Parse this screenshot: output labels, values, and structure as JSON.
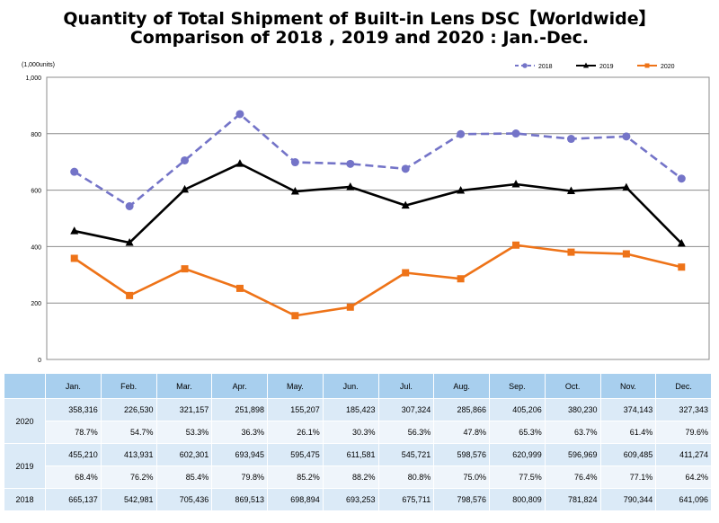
{
  "title_line1": "Quantity of Total Shipment of Built-in Lens DSC【Worldwide】",
  "title_line2": "Comparison of 2018 , 2019 and 2020 : Jan.-Dec.",
  "chart_data": {
    "type": "line",
    "unit_label": "(1,000units)",
    "categories": [
      "Jan.",
      "Feb.",
      "Mar.",
      "Apr.",
      "May.",
      "Jun.",
      "Jul.",
      "Aug.",
      "Sep.",
      "Oct.",
      "Nov.",
      "Dec."
    ],
    "ylim": [
      0,
      1000
    ],
    "yticks": [
      "0",
      "200",
      "400",
      "600",
      "800",
      "1,000"
    ],
    "ytick_values": [
      0,
      200,
      400,
      600,
      800,
      1000
    ],
    "grid": true,
    "legend_position": "top-right",
    "series": [
      {
        "name": "2018",
        "color": "#7474c8",
        "style": "dashed",
        "marker": "circle",
        "values": [
          665.137,
          542.981,
          705.436,
          869.513,
          698.894,
          693.253,
          675.711,
          798.576,
          800.809,
          781.824,
          790.344,
          641.096
        ]
      },
      {
        "name": "2019",
        "color": "#000000",
        "style": "solid",
        "marker": "triangle",
        "values": [
          455.21,
          413.931,
          602.301,
          693.945,
          595.475,
          611.581,
          545.721,
          598.576,
          620.999,
          596.969,
          609.485,
          411.274
        ]
      },
      {
        "name": "2020",
        "color": "#ee7318",
        "style": "solid",
        "marker": "square",
        "values": [
          358.316,
          226.53,
          321.157,
          251.898,
          155.207,
          185.423,
          307.324,
          285.866,
          405.206,
          380.23,
          374.143,
          327.343
        ]
      }
    ]
  },
  "table": {
    "months": [
      "Jan.",
      "Feb.",
      "Mar.",
      "Apr.",
      "May.",
      "Jun.",
      "Jul.",
      "Aug.",
      "Sep.",
      "Oct.",
      "Nov.",
      "Dec."
    ],
    "rows": [
      {
        "year": "2020",
        "quantities": [
          "358,316",
          "226,530",
          "321,157",
          "251,898",
          "155,207",
          "185,423",
          "307,324",
          "285,866",
          "405,206",
          "380,230",
          "374,143",
          "327,343"
        ],
        "percents": [
          "78.7%",
          "54.7%",
          "53.3%",
          "36.3%",
          "26.1%",
          "30.3%",
          "56.3%",
          "47.8%",
          "65.3%",
          "63.7%",
          "61.4%",
          "79.6%"
        ]
      },
      {
        "year": "2019",
        "quantities": [
          "455,210",
          "413,931",
          "602,301",
          "693,945",
          "595,475",
          "611,581",
          "545,721",
          "598,576",
          "620,999",
          "596,969",
          "609,485",
          "411,274"
        ],
        "percents": [
          "68.4%",
          "76.2%",
          "85.4%",
          "79.8%",
          "85.2%",
          "88.2%",
          "80.8%",
          "75.0%",
          "77.5%",
          "76.4%",
          "77.1%",
          "64.2%"
        ]
      },
      {
        "year": "2018",
        "quantities": [
          "665,137",
          "542,981",
          "705,436",
          "869,513",
          "698,894",
          "693,253",
          "675,711",
          "798,576",
          "800,809",
          "781,824",
          "790,344",
          "641,096"
        ],
        "percents": []
      }
    ]
  }
}
